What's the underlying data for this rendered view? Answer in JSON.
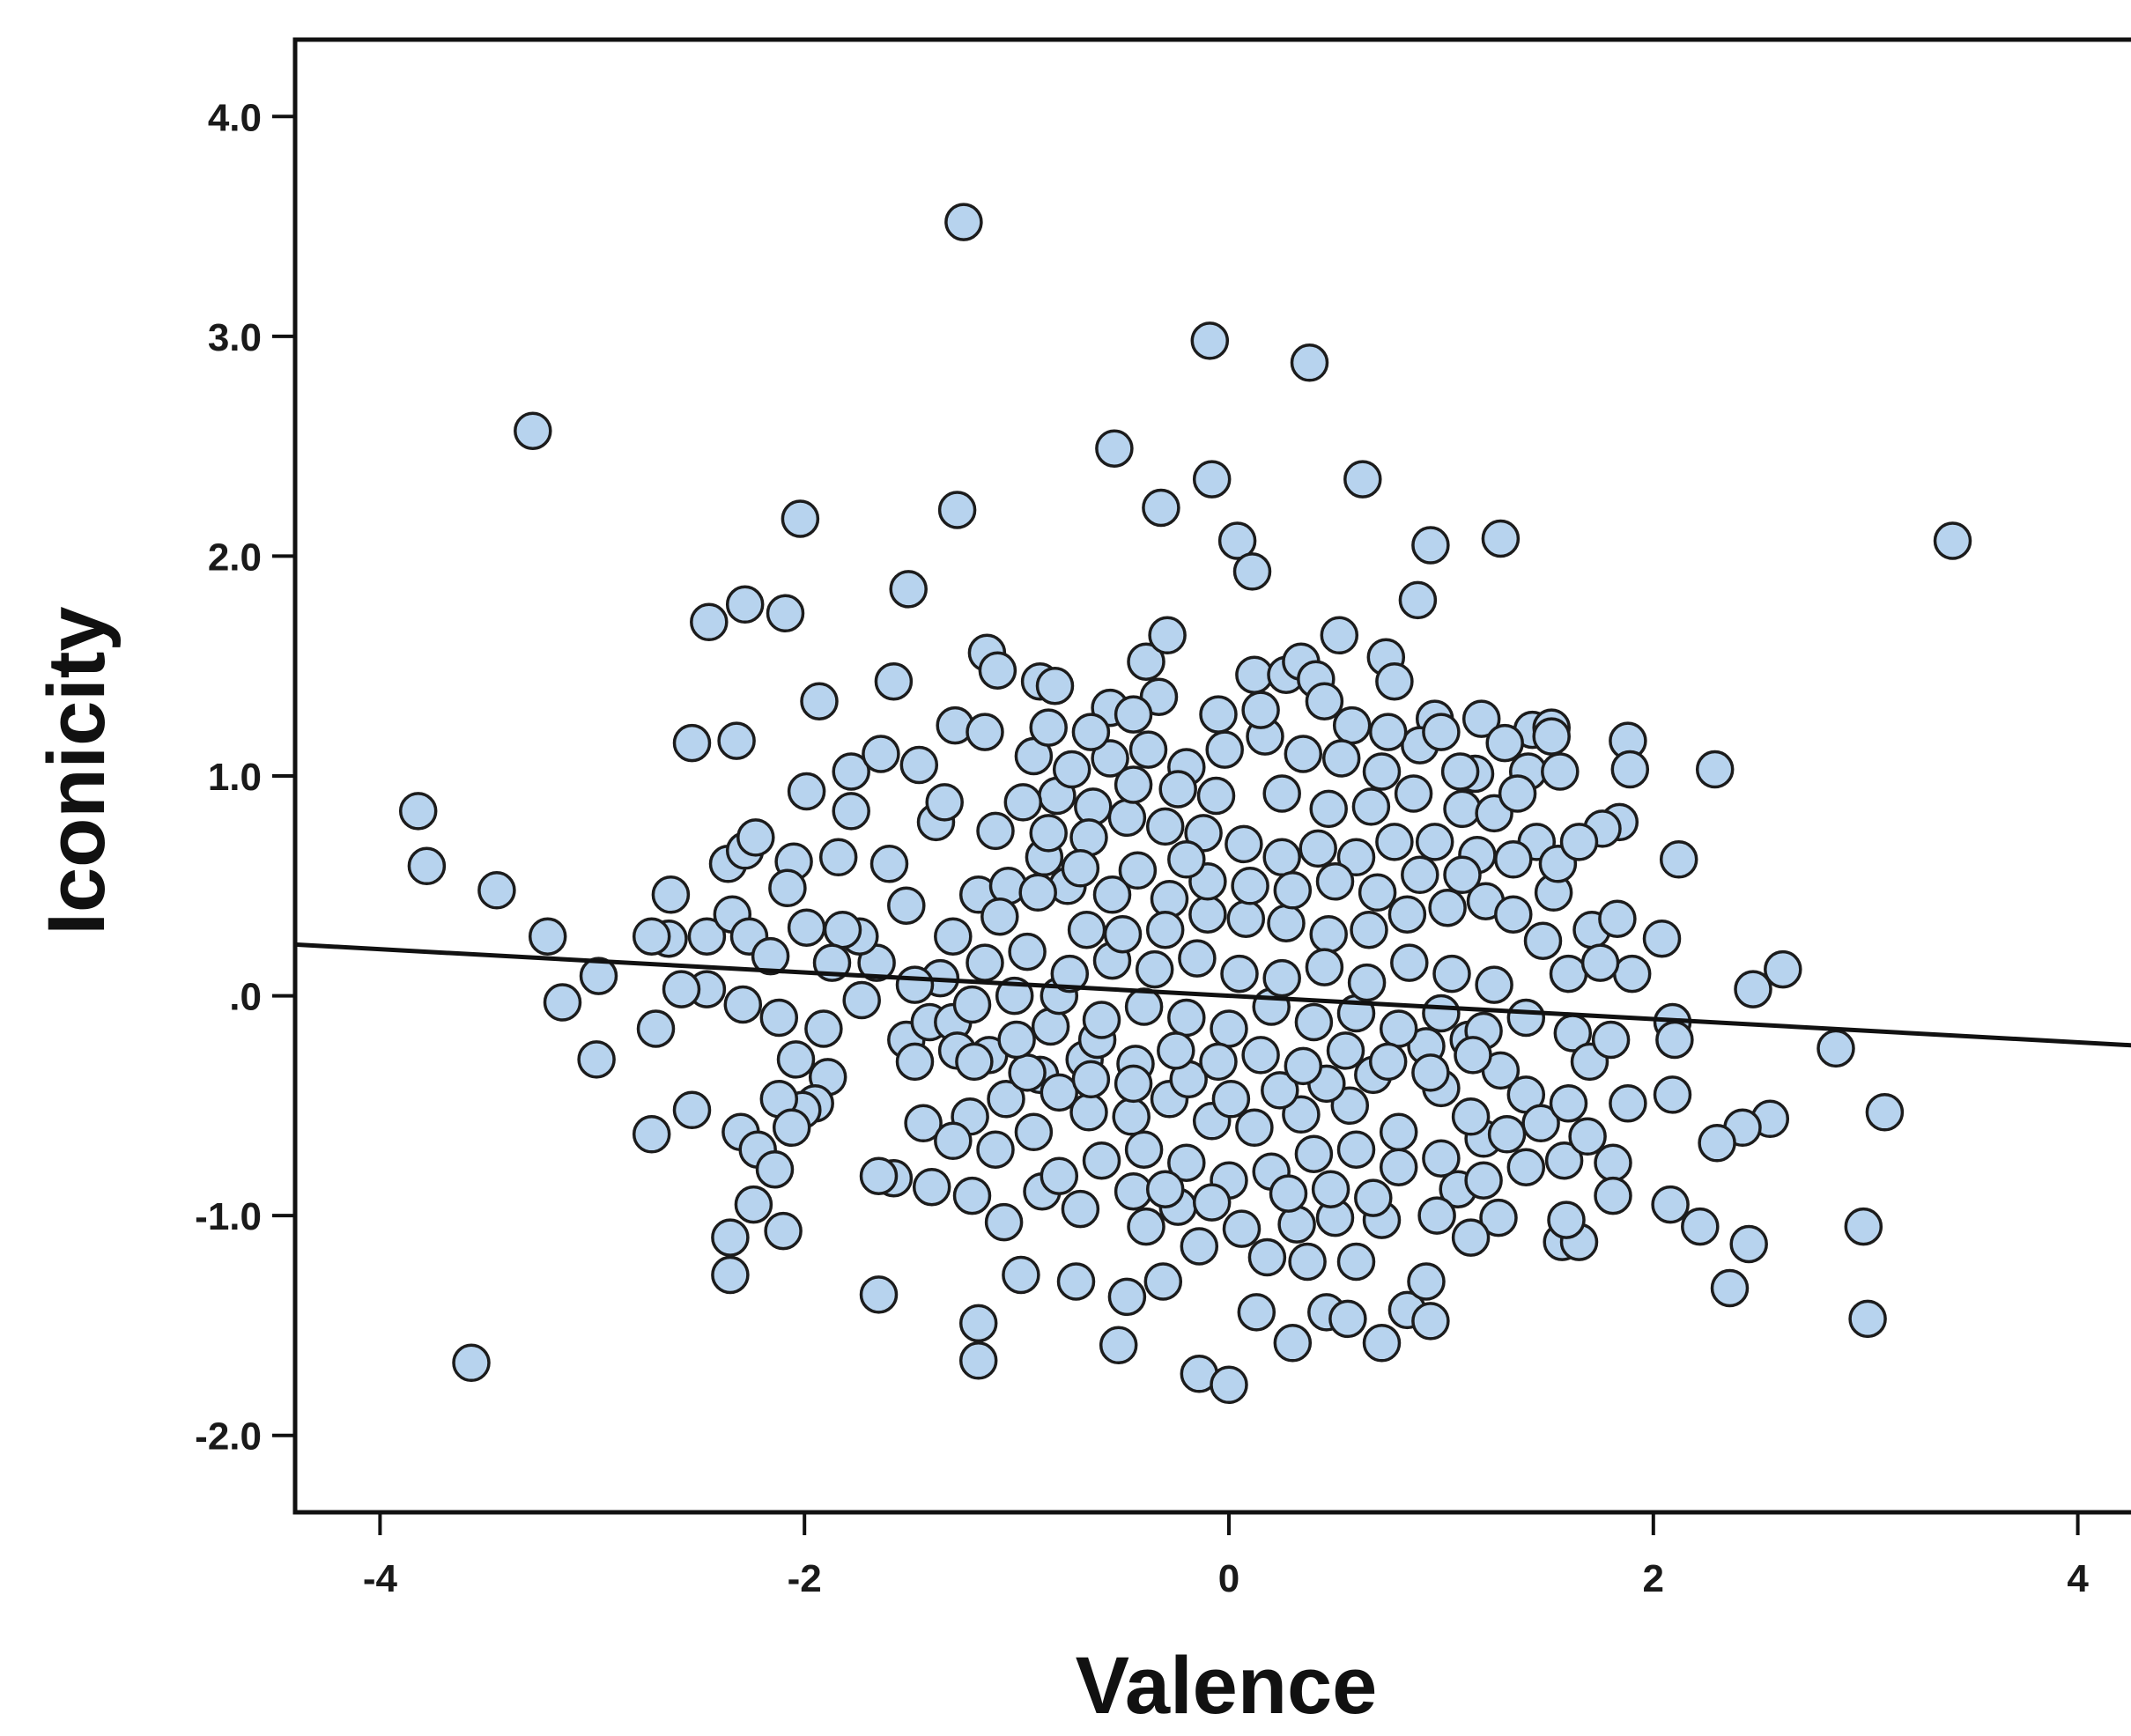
{
  "chart_data": {
    "type": "scatter",
    "title": "",
    "xlabel": "Valence",
    "ylabel": "Iconicity",
    "xlim": [
      -4.4,
      4.4
    ],
    "ylim": [
      -2.35,
      4.35
    ],
    "x_ticks": [
      -4,
      -2,
      0,
      2,
      4
    ],
    "x_tick_labels": [
      "-4",
      "-2",
      "0",
      "2",
      "4"
    ],
    "y_ticks": [
      4.0,
      3.0,
      2.0,
      1.0,
      0.0,
      -1.0,
      -2.0
    ],
    "y_tick_labels": [
      "4.0",
      "3.0",
      "2.0",
      "1.0",
      ".0",
      "-1.0",
      "-2.0"
    ],
    "grid": false,
    "legend": "none",
    "fit_line": {
      "slope": -0.053,
      "intercept": 0.0,
      "x_range": [
        -4.4,
        4.4
      ]
    },
    "colors": {
      "marker_fill": "#b7d3ee",
      "marker_edge": "#1c1c1c",
      "fit_line": "#111111",
      "frame": "#111111",
      "background": "#ffffff"
    },
    "points": [
      [
        -1.25,
        3.52
      ],
      [
        -0.09,
        2.98
      ],
      [
        0.38,
        2.88
      ],
      [
        -3.28,
        2.57
      ],
      [
        3.41,
        2.07
      ],
      [
        -0.54,
        2.49
      ],
      [
        -0.08,
        2.35
      ],
      [
        0.63,
        2.35
      ],
      [
        -1.28,
        2.21
      ],
      [
        -0.32,
        2.22
      ],
      [
        -2.02,
        2.17
      ],
      [
        0.04,
        2.07
      ],
      [
        0.95,
        2.05
      ],
      [
        1.28,
        2.08
      ],
      [
        0.11,
        1.93
      ],
      [
        0.89,
        1.8
      ],
      [
        -1.51,
        1.85
      ],
      [
        -2.28,
        1.78
      ],
      [
        -2.45,
        1.7
      ],
      [
        -2.09,
        1.74
      ],
      [
        -3.82,
        0.84
      ],
      [
        -3.78,
        0.59
      ],
      [
        -3.45,
        0.48
      ],
      [
        -3.21,
        0.27
      ],
      [
        -3.14,
        -0.03
      ],
      [
        -2.97,
        0.09
      ],
      [
        -2.98,
        -0.29
      ],
      [
        -2.7,
        -0.15
      ],
      [
        -2.72,
        -0.63
      ],
      [
        -2.53,
        -0.52
      ],
      [
        -3.57,
        -1.67
      ],
      [
        -2.35,
        -1.1
      ],
      [
        -2.35,
        -1.27
      ],
      [
        -2.1,
        -1.07
      ],
      [
        -2.24,
        -0.95
      ],
      [
        -1.65,
        -1.36
      ],
      [
        -1.18,
        -1.49
      ],
      [
        -1.18,
        -1.66
      ],
      [
        -0.98,
        -1.27
      ],
      [
        -0.72,
        -1.3
      ],
      [
        -0.52,
        -1.59
      ],
      [
        -0.31,
        -1.3
      ],
      [
        -0.14,
        -1.14
      ],
      [
        -0.14,
        -1.72
      ],
      [
        0.0,
        -1.77
      ],
      [
        0.13,
        -1.44
      ],
      [
        0.3,
        -1.58
      ],
      [
        0.46,
        -1.44
      ],
      [
        0.56,
        -1.47
      ],
      [
        0.72,
        -1.58
      ],
      [
        0.84,
        -1.43
      ],
      [
        0.95,
        -1.48
      ],
      [
        0.93,
        -1.3
      ],
      [
        0.18,
        -1.19
      ],
      [
        0.37,
        -1.21
      ],
      [
        -0.48,
        -1.37
      ],
      [
        1.57,
        -1.12
      ],
      [
        1.65,
        -1.12
      ],
      [
        1.59,
        -1.02
      ],
      [
        2.08,
        -0.95
      ],
      [
        2.22,
        -1.05
      ],
      [
        2.45,
        -1.13
      ],
      [
        2.36,
        -1.33
      ],
      [
        2.99,
        -1.05
      ],
      [
        3.01,
        -1.47
      ],
      [
        3.09,
        -0.53
      ],
      [
        2.86,
        -0.24
      ],
      [
        2.61,
        0.12
      ],
      [
        2.47,
        0.03
      ],
      [
        2.55,
        -0.56
      ],
      [
        2.42,
        -0.6
      ],
      [
        2.3,
        -0.67
      ],
      [
        2.09,
        -0.45
      ],
      [
        1.88,
        -0.49
      ],
      [
        2.29,
        1.03
      ],
      [
        2.12,
        0.62
      ],
      [
        2.04,
        0.26
      ],
      [
        1.88,
        1.16
      ],
      [
        1.84,
        0.79
      ],
      [
        1.89,
        1.03
      ],
      [
        1.76,
        0.76
      ],
      [
        1.71,
        0.3
      ],
      [
        1.62,
        -0.17
      ],
      [
        1.58,
        -0.75
      ],
      [
        1.81,
        -0.76
      ],
      [
        1.81,
        -0.91
      ],
      [
        2.09,
        -0.12
      ],
      [
        2.1,
        -0.2
      ],
      [
        1.9,
        0.1
      ],
      [
        1.83,
        0.35
      ],
      [
        1.27,
        -1.01
      ],
      [
        1.14,
        -1.1
      ],
      [
        1.08,
        -0.88
      ],
      [
        1.2,
        -0.65
      ],
      [
        0.98,
        -1.0
      ],
      [
        0.72,
        -1.02
      ],
      [
        0.5,
        -1.01
      ],
      [
        0.6,
        -1.21
      ],
      [
        0.32,
        -1.04
      ],
      [
        0.06,
        -1.06
      ],
      [
        -0.24,
        -0.96
      ],
      [
        -0.39,
        -1.05
      ],
      [
        -0.45,
        -0.89
      ],
      [
        -0.7,
        -0.97
      ],
      [
        -0.88,
        -0.89
      ],
      [
        -1.06,
        -1.03
      ],
      [
        -1.21,
        -0.91
      ],
      [
        -1.4,
        -0.87
      ],
      [
        -1.58,
        -0.83
      ],
      [
        -1.65,
        -0.82
      ],
      [
        -1.44,
        -0.58
      ],
      [
        -1.22,
        -0.55
      ],
      [
        -1.05,
        -0.47
      ],
      [
        -0.89,
        -0.36
      ],
      [
        -0.68,
        -0.29
      ],
      [
        -1.89,
        -0.37
      ],
      [
        -1.95,
        -0.49
      ],
      [
        -2.01,
        -0.52
      ],
      [
        -2.12,
        -0.47
      ],
      [
        -2.3,
        -0.62
      ],
      [
        -2.22,
        -0.7
      ],
      [
        -2.14,
        -0.79
      ],
      [
        -2.06,
        -0.6
      ],
      [
        -2.04,
        -0.29
      ],
      [
        -2.12,
        -0.1
      ],
      [
        -2.29,
        -0.04
      ],
      [
        -2.46,
        0.03
      ],
      [
        -2.58,
        0.03
      ],
      [
        -2.64,
        0.26
      ],
      [
        -2.63,
        0.46
      ],
      [
        -2.72,
        0.27
      ],
      [
        -2.46,
        0.27
      ],
      [
        -2.34,
        0.37
      ],
      [
        -2.26,
        0.27
      ],
      [
        -2.16,
        0.18
      ],
      [
        -2.36,
        0.6
      ],
      [
        -2.28,
        0.66
      ],
      [
        -2.23,
        0.72
      ],
      [
        -2.05,
        0.61
      ],
      [
        -1.99,
        0.31
      ],
      [
        -2.08,
        0.49
      ],
      [
        -2.53,
        1.15
      ],
      [
        -2.32,
        1.16
      ],
      [
        -1.99,
        0.93
      ],
      [
        -1.93,
        1.34
      ],
      [
        -1.78,
        1.02
      ],
      [
        -1.78,
        0.84
      ],
      [
        -1.84,
        0.63
      ],
      [
        -1.64,
        1.1
      ],
      [
        -1.58,
        1.43
      ],
      [
        -1.46,
        1.05
      ],
      [
        -1.38,
        0.79
      ],
      [
        -1.34,
        0.88
      ],
      [
        -1.29,
        1.23
      ],
      [
        -1.15,
        1.2
      ],
      [
        -1.14,
        1.56
      ],
      [
        -1.09,
        1.48
      ],
      [
        -0.89,
        1.43
      ],
      [
        -0.82,
        1.41
      ],
      [
        -0.56,
        1.31
      ],
      [
        -0.39,
        1.52
      ],
      [
        -0.29,
        1.64
      ],
      [
        -0.33,
        1.36
      ],
      [
        0.12,
        1.46
      ],
      [
        0.27,
        1.46
      ],
      [
        0.34,
        1.52
      ],
      [
        0.41,
        1.44
      ],
      [
        0.52,
        1.64
      ],
      [
        0.74,
        1.54
      ],
      [
        0.78,
        1.43
      ],
      [
        0.58,
        1.23
      ],
      [
        0.97,
        1.26
      ],
      [
        1.19,
        1.26
      ],
      [
        1.43,
        1.21
      ],
      [
        1.52,
        1.22
      ],
      [
        1.52,
        1.18
      ],
      [
        1.41,
        1.02
      ],
      [
        1.56,
        1.02
      ],
      [
        1.16,
        1.01
      ],
      [
        1.09,
        1.02
      ],
      [
        -1.6,
        0.6
      ],
      [
        -1.52,
        0.41
      ],
      [
        -1.66,
        0.15
      ],
      [
        -1.74,
        0.27
      ],
      [
        -1.82,
        0.3
      ],
      [
        -1.87,
        0.15
      ],
      [
        -1.73,
        -0.02
      ],
      [
        -1.91,
        -0.15
      ],
      [
        -1.52,
        -0.2
      ],
      [
        -1.48,
        -0.3
      ],
      [
        -1.41,
        -0.12
      ],
      [
        -1.3,
        -0.12
      ],
      [
        -1.28,
        -0.25
      ],
      [
        -1.13,
        -0.27
      ],
      [
        -0.95,
        -0.35
      ],
      [
        -0.8,
        -0.44
      ],
      [
        -0.66,
        -0.53
      ],
      [
        -0.46,
        -0.55
      ],
      [
        -0.28,
        -0.47
      ],
      [
        -0.08,
        -0.57
      ],
      [
        0.12,
        -0.6
      ],
      [
        0.34,
        -0.54
      ],
      [
        0.57,
        -0.5
      ],
      [
        0.8,
        -0.62
      ],
      [
        1.0,
        -0.42
      ],
      [
        1.14,
        -0.55
      ],
      [
        1.31,
        -0.63
      ],
      [
        1.4,
        -0.45
      ],
      [
        1.47,
        -0.58
      ],
      [
        1.6,
        -0.49
      ],
      [
        1.69,
        -0.64
      ],
      [
        1.28,
        -0.34
      ],
      [
        1.13,
        -0.2
      ],
      [
        0.93,
        -0.23
      ],
      [
        0.68,
        -0.36
      ],
      [
        0.46,
        -0.4
      ],
      [
        0.24,
        -0.43
      ],
      [
        0.01,
        -0.47
      ],
      [
        -0.19,
        -0.38
      ],
      [
        -0.44,
        -0.31
      ],
      [
        -0.62,
        -0.2
      ],
      [
        -0.84,
        -0.14
      ],
      [
        -1.01,
        0.0
      ],
      [
        -1.21,
        -0.04
      ],
      [
        -1.36,
        0.08
      ],
      [
        -1.48,
        0.05
      ],
      [
        -1.3,
        0.27
      ],
      [
        -1.18,
        0.46
      ],
      [
        -1.04,
        0.5
      ],
      [
        -0.87,
        0.63
      ],
      [
        -0.76,
        0.5
      ],
      [
        -0.67,
        0.3
      ],
      [
        -0.55,
        0.46
      ],
      [
        -0.43,
        0.57
      ],
      [
        -0.28,
        0.44
      ],
      [
        -0.1,
        0.37
      ],
      [
        0.08,
        0.35
      ],
      [
        0.27,
        0.33
      ],
      [
        0.47,
        0.28
      ],
      [
        0.66,
        0.3
      ],
      [
        0.84,
        0.37
      ],
      [
        1.03,
        0.4
      ],
      [
        1.21,
        0.43
      ],
      [
        1.34,
        0.37
      ],
      [
        1.48,
        0.25
      ],
      [
        1.53,
        0.47
      ],
      [
        1.45,
        0.7
      ],
      [
        1.34,
        0.62
      ],
      [
        1.17,
        0.64
      ],
      [
        0.97,
        0.7
      ],
      [
        0.78,
        0.7
      ],
      [
        0.6,
        0.63
      ],
      [
        0.42,
        0.67
      ],
      [
        0.25,
        0.63
      ],
      [
        0.07,
        0.69
      ],
      [
        -0.12,
        0.74
      ],
      [
        -0.3,
        0.77
      ],
      [
        -0.48,
        0.81
      ],
      [
        -0.64,
        0.86
      ],
      [
        -0.81,
        0.91
      ],
      [
        -0.97,
        0.88
      ],
      [
        -1.1,
        0.75
      ],
      [
        -0.92,
        1.09
      ],
      [
        -0.74,
        1.03
      ],
      [
        -0.56,
        1.08
      ],
      [
        -0.38,
        1.12
      ],
      [
        -0.2,
        1.04
      ],
      [
        -0.02,
        1.12
      ],
      [
        0.17,
        1.18
      ],
      [
        0.35,
        1.1
      ],
      [
        0.53,
        1.08
      ],
      [
        0.72,
        1.02
      ],
      [
        0.9,
        1.14
      ],
      [
        1.1,
        0.85
      ],
      [
        1.25,
        0.83
      ],
      [
        1.36,
        0.92
      ],
      [
        -0.06,
        0.91
      ],
      [
        0.25,
        0.92
      ],
      [
        0.47,
        0.85
      ],
      [
        0.67,
        0.86
      ],
      [
        0.87,
        0.92
      ],
      [
        -0.24,
        0.94
      ],
      [
        -0.45,
        0.96
      ],
      [
        -0.66,
        0.72
      ],
      [
        -0.85,
        0.74
      ],
      [
        -0.2,
        -0.1
      ],
      [
        0.0,
        -0.15
      ],
      [
        0.2,
        -0.05
      ],
      [
        0.4,
        -0.12
      ],
      [
        0.6,
        -0.08
      ],
      [
        0.8,
        -0.15
      ],
      [
        1.0,
        -0.08
      ],
      [
        1.2,
        -0.16
      ],
      [
        1.4,
        -0.1
      ],
      [
        -0.4,
        -0.05
      ],
      [
        -0.6,
        -0.11
      ],
      [
        -0.8,
        0.0
      ],
      [
        -0.35,
        0.12
      ],
      [
        -0.15,
        0.17
      ],
      [
        0.05,
        0.1
      ],
      [
        0.25,
        0.08
      ],
      [
        0.45,
        0.13
      ],
      [
        0.65,
        0.06
      ],
      [
        0.85,
        0.15
      ],
      [
        1.05,
        0.1
      ],
      [
        1.25,
        0.05
      ],
      [
        -0.55,
        0.16
      ],
      [
        -0.75,
        0.1
      ],
      [
        -0.95,
        0.2
      ],
      [
        -1.15,
        0.15
      ],
      [
        -0.25,
        -0.25
      ],
      [
        -0.05,
        -0.3
      ],
      [
        0.15,
        -0.27
      ],
      [
        0.35,
        -0.32
      ],
      [
        0.55,
        -0.25
      ],
      [
        0.75,
        -0.3
      ],
      [
        0.95,
        -0.35
      ],
      [
        1.15,
        -0.27
      ],
      [
        -0.45,
        -0.4
      ],
      [
        -0.65,
        -0.38
      ],
      [
        -0.3,
        0.3
      ],
      [
        -0.5,
        0.28
      ],
      [
        -0.1,
        0.52
      ],
      [
        0.1,
        0.5
      ],
      [
        0.3,
        0.48
      ],
      [
        0.5,
        0.52
      ],
      [
        0.7,
        0.47
      ],
      [
        0.9,
        0.55
      ],
      [
        1.1,
        0.55
      ],
      [
        -0.7,
        0.58
      ],
      [
        -0.9,
        0.47
      ],
      [
        -1.08,
        0.36
      ],
      [
        -0.2,
        0.62
      ],
      [
        0.6,
        -0.7
      ],
      [
        0.4,
        -0.72
      ],
      [
        0.2,
        -0.8
      ],
      [
        0.0,
        -0.84
      ],
      [
        -0.2,
        -0.76
      ],
      [
        -0.4,
        -0.7
      ],
      [
        -0.6,
        -0.75
      ],
      [
        -0.8,
        -0.82
      ],
      [
        0.8,
        -0.78
      ],
      [
        1.0,
        -0.74
      ],
      [
        1.2,
        -0.84
      ],
      [
        1.4,
        -0.78
      ],
      [
        0.28,
        -0.9
      ],
      [
        0.48,
        -0.88
      ],
      [
        0.68,
        -0.92
      ],
      [
        -0.08,
        -0.94
      ],
      [
        -0.3,
        -0.88
      ],
      [
        -0.92,
        -0.62
      ],
      [
        -1.1,
        -0.7
      ],
      [
        -1.3,
        -0.66
      ],
      [
        -1.0,
        -0.2
      ],
      [
        -1.2,
        -0.3
      ],
      [
        1.6,
        0.1
      ],
      [
        1.7,
        -0.3
      ],
      [
        1.75,
        0.15
      ],
      [
        1.8,
        -0.2
      ],
      [
        1.55,
        0.6
      ],
      [
        1.65,
        0.7
      ],
      [
        0.15,
        1.3
      ],
      [
        -0.05,
        1.28
      ],
      [
        0.45,
        1.34
      ],
      [
        -0.45,
        1.28
      ],
      [
        0.75,
        1.2
      ],
      [
        1.0,
        1.2
      ],
      [
        1.3,
        1.15
      ],
      [
        -0.65,
        1.2
      ],
      [
        -0.85,
        1.22
      ]
    ]
  }
}
